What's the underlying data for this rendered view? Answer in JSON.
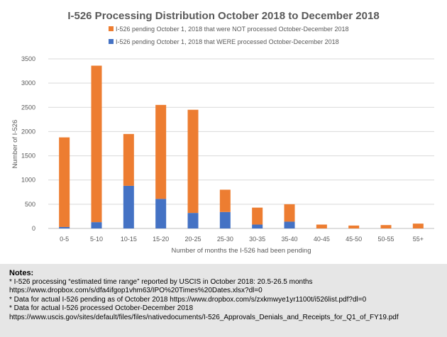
{
  "chart_data": {
    "type": "bar",
    "stacked": true,
    "title": "I-526 Processing Distribution October 2018 to December 2018",
    "xlabel": "Number  of months the I-526 had been pending",
    "ylabel": "Number  of I-526",
    "ylim": [
      0,
      3500
    ],
    "yticks": [
      "0",
      "500",
      "1000",
      "1500",
      "2000",
      "2500",
      "3000",
      "3500"
    ],
    "grid": true,
    "legend_position": "top",
    "categories": [
      "0-5",
      "5-10",
      "10-15",
      "15-20",
      "20-25",
      "25-30",
      "30-35",
      "35-40",
      "40-45",
      "45-50",
      "50-55",
      "55+"
    ],
    "series": [
      {
        "name": "I-526 pending October 1, 2018 that WERE processed October-December 2018",
        "color": "#4472c4",
        "values": [
          30,
          130,
          880,
          610,
          320,
          340,
          80,
          140,
          0,
          0,
          0,
          0
        ]
      },
      {
        "name": "I-526 pending October 1, 2018 that were NOT processed October-December 2018",
        "color": "#ed7d31",
        "values": [
          1850,
          3230,
          1070,
          1940,
          2130,
          460,
          350,
          360,
          80,
          60,
          70,
          100
        ]
      }
    ]
  },
  "notes": {
    "title": "Notes:",
    "lines": [
      "* I-526 processing “estimated time range” reported by USCIS in October 2018: 20.5-26.5 months",
      "https://www.dropbox.com/s/dfa4ifgop1vhm63/IPO%20Times%20Dates.xlsx?dl=0",
      "* Data for actual I-526 pending as of October 2018 https://www.dropbox.com/s/zxkmwye1yr1100t/i526list.pdf?dl=0",
      "* Data for actual I-526 processed October-December 2018",
      "https://www.uscis.gov/sites/default/files/files/nativedocuments/I-526_Approvals_Denials_and_Receipts_for_Q1_of_FY19.pdf"
    ]
  }
}
